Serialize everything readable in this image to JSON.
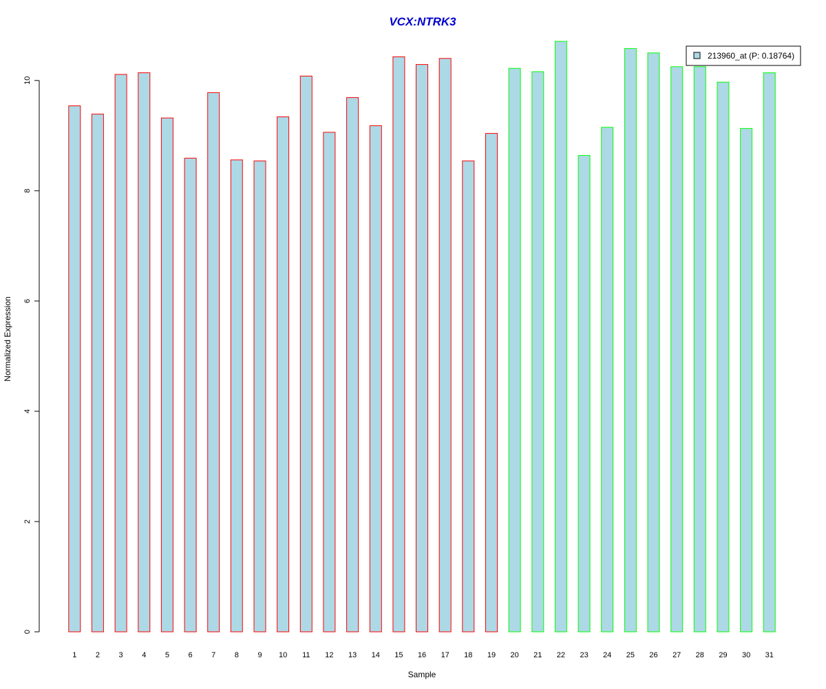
{
  "chart_data": {
    "type": "bar",
    "title": "VCX:NTRK3",
    "xlabel": "Sample",
    "ylabel": "Normalized Expression",
    "categories": [
      "1",
      "2",
      "3",
      "4",
      "5",
      "6",
      "7",
      "8",
      "9",
      "10",
      "11",
      "12",
      "13",
      "14",
      "15",
      "16",
      "17",
      "18",
      "19",
      "20",
      "21",
      "22",
      "23",
      "24",
      "25",
      "26",
      "27",
      "28",
      "29",
      "30",
      "31"
    ],
    "values": [
      9.54,
      9.39,
      10.11,
      10.14,
      9.32,
      8.59,
      9.78,
      8.56,
      8.54,
      9.34,
      10.08,
      9.06,
      9.69,
      9.18,
      10.43,
      10.29,
      10.4,
      8.54,
      9.04,
      10.22,
      10.16,
      10.71,
      8.64,
      9.15,
      10.58,
      10.5,
      10.25,
      10.25,
      9.97,
      9.13,
      10.14
    ],
    "group_of_bar": [
      "a",
      "a",
      "a",
      "a",
      "a",
      "a",
      "a",
      "a",
      "a",
      "a",
      "a",
      "a",
      "a",
      "a",
      "a",
      "a",
      "a",
      "a",
      "a",
      "b",
      "b",
      "b",
      "b",
      "b",
      "b",
      "b",
      "b",
      "b",
      "b",
      "b",
      "b"
    ],
    "yticks": [
      0,
      2,
      4,
      6,
      8,
      10
    ],
    "ylim": [
      0,
      10.71
    ],
    "grid": false,
    "legend": {
      "placement": "top-right",
      "entries": [
        {
          "label": "213960_at (P: 0.18764)",
          "color": "#add8e6"
        }
      ]
    },
    "colors": {
      "title": "#0000cd",
      "bar_fill": "#add8e6",
      "group_a_border": "#ff0000",
      "group_b_border": "#00ff00",
      "axis": "#000000"
    }
  }
}
